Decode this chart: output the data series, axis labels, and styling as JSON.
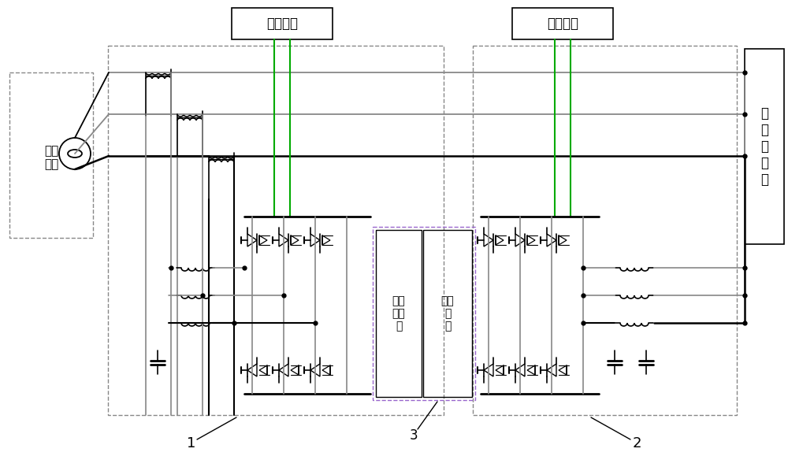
{
  "bg_color": "#ffffff",
  "lc": "#888888",
  "dc": "#000000",
  "gc": "#00aa00",
  "labels": {
    "shidian": "市电\n配网",
    "guangfu1": "光伏并网",
    "guangfu2": "光伏并网",
    "feixianxing": "非\n线\n性\n负\n载",
    "xudian": "蓄电\n池装\n置",
    "guangfu_array": "光伏\n阵\n列",
    "num1": "1",
    "num2": "2",
    "num3": "3"
  },
  "figsize": [
    10.0,
    5.79
  ],
  "dpi": 100
}
